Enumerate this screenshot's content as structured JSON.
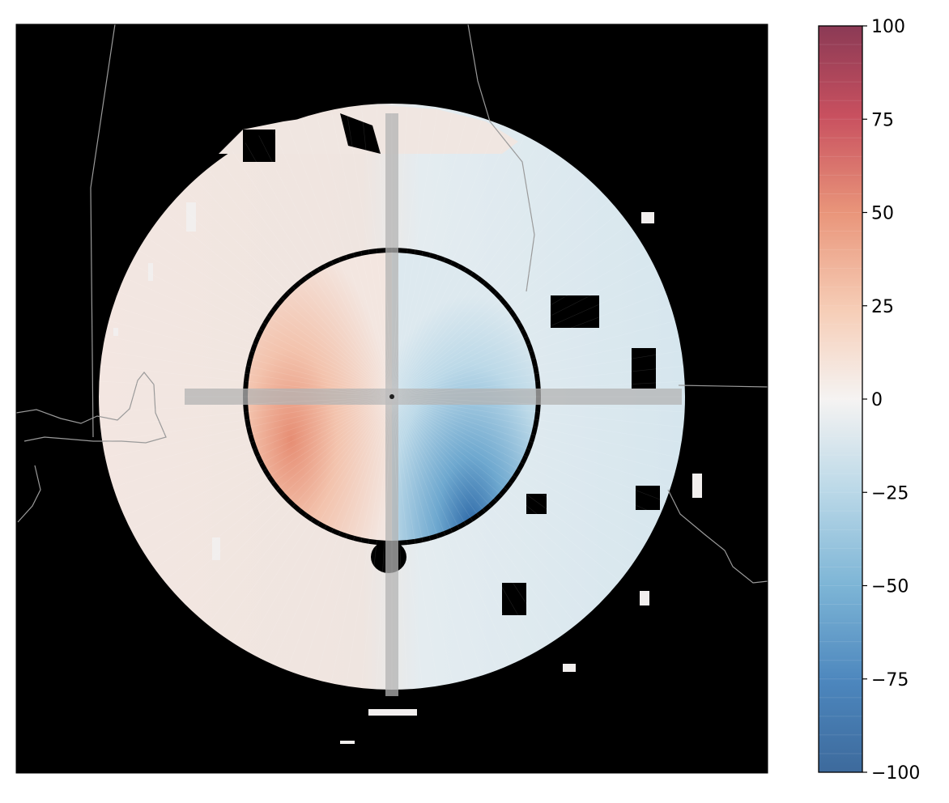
{
  "chart_data": {
    "type": "heatmap",
    "plot": "radar radial velocity PPI map",
    "title": "",
    "xlabel": "",
    "ylabel": "",
    "colorbar": {
      "range": [
        -100,
        100
      ],
      "ticks": [
        100,
        75,
        50,
        25,
        0,
        -25,
        -50,
        -75,
        -100
      ],
      "tick_labels": [
        "100",
        "75",
        "50",
        "25",
        "0",
        "−25",
        "−50",
        "−75",
        "−100"
      ],
      "colormap": "diverging blue-white-red (RdBu_r)",
      "levels": 40
    },
    "field_estimates": {
      "inner_ring_max_inbound": -90,
      "inner_ring_max_outbound": 45,
      "outer_ring_typical": 10
    }
  },
  "colors": {
    "background": "#000000",
    "coastline": "#9a9a9a",
    "neg_max": "#2f5f8f",
    "zero": "#f6f4f2",
    "pos_max": "#7a1f33"
  }
}
